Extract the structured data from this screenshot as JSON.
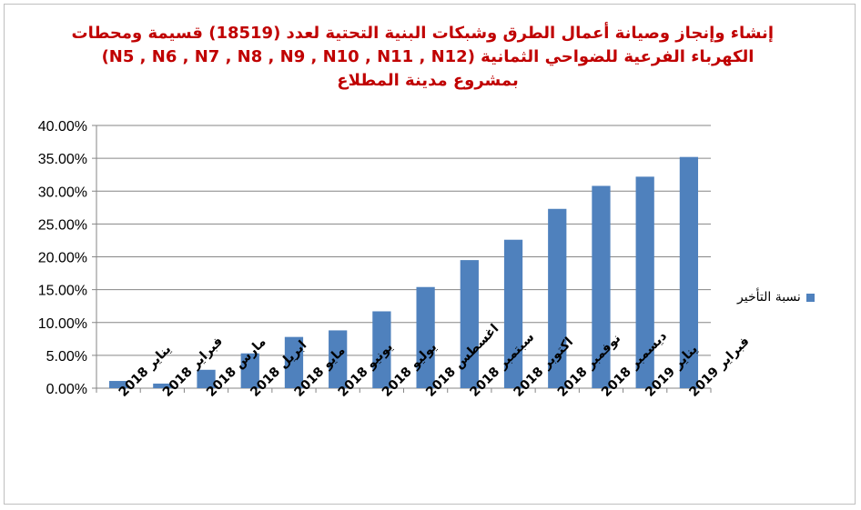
{
  "chart_data": {
    "type": "bar",
    "title_lines": [
      "إنشاء وإنجاز وصيانة أعمال  الطرق وشبكات البنية التحتية لعدد (18519) قسيمة ومحطات",
      "الكهرباء الفرعية للضواحي الثمانية (N5 , N6 , N7 , N8 , N9 , N10 , N11 , N12)",
      "بمشروع مدينة المطلاع"
    ],
    "categories": [
      "يناير 2018",
      "فبراير 2018",
      "مارس 2018",
      "ابريل 2018",
      "مايو 2018",
      "يونيو 2018",
      "يوليو 2018",
      "اغسطس 2018",
      "سبتمبر 2018",
      "اكتوبر 2018",
      "نوفمبر 2018",
      "ديسمبر 2018",
      "يناير 2019",
      "فبراير 2019"
    ],
    "series": [
      {
        "name": "نسبة التأخير",
        "values": [
          1.1,
          0.7,
          2.8,
          5.3,
          7.8,
          8.8,
          11.7,
          15.4,
          19.5,
          22.6,
          27.3,
          30.8,
          32.2,
          35.2
        ],
        "color": "#4f81bd"
      }
    ],
    "ylim": [
      0,
      40
    ],
    "yticks": [
      "0.00%",
      "5.00%",
      "10.00%",
      "15.00%",
      "20.00%",
      "25.00%",
      "30.00%",
      "35.00%",
      "40.00%"
    ],
    "grid": true,
    "legend_position": "right"
  }
}
